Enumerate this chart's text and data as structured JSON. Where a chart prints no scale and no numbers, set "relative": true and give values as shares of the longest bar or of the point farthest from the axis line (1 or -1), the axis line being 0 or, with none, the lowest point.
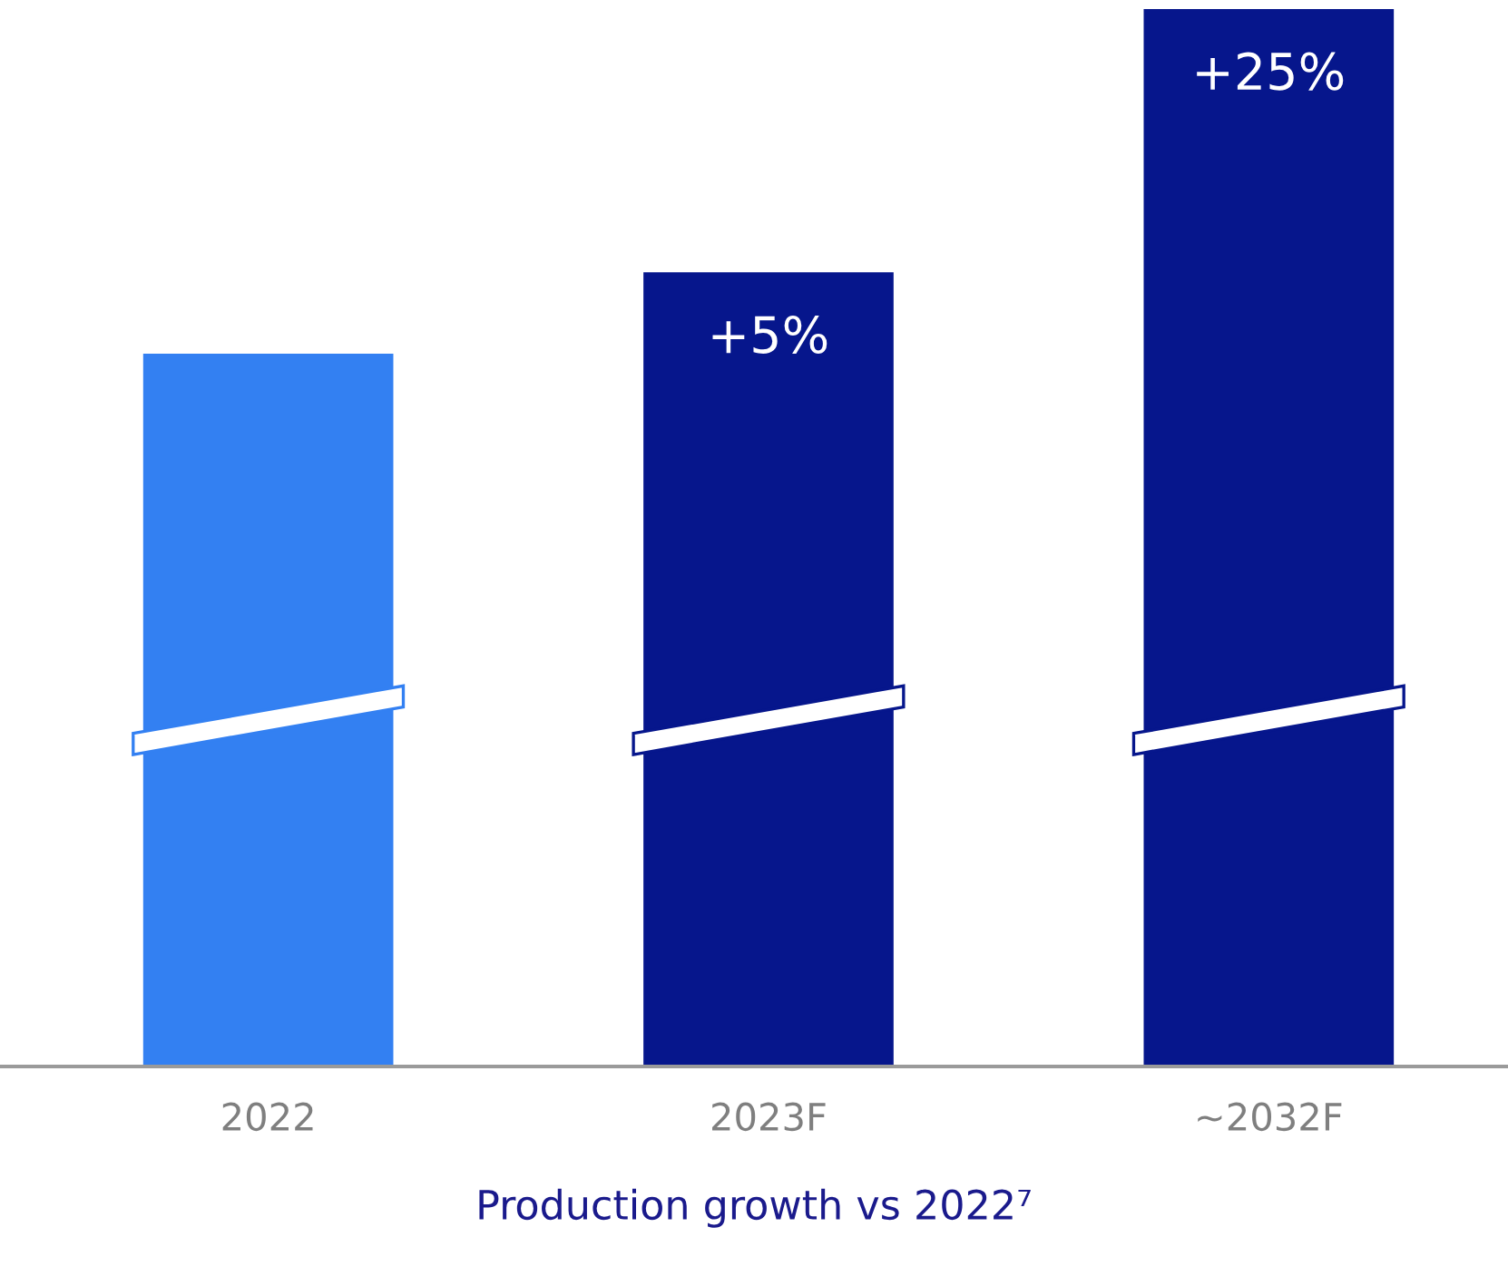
{
  "chart_data": {
    "type": "bar",
    "relative": true,
    "categories": [
      "2022",
      "2023F",
      "~2032F"
    ],
    "values": [
      0.674,
      0.751,
      1
    ],
    "colors": [
      "#3380f2",
      "#06168c",
      "#06168c"
    ],
    "annotations": [
      {
        "text": "+5%",
        "x": "2023F",
        "y": 0.751
      },
      {
        "text": "+25%",
        "x": "~2032F",
        "y": 1
      }
    ],
    "xlabel": "Production growth vs 2022⁷",
    "grid": false,
    "legend": false
  }
}
